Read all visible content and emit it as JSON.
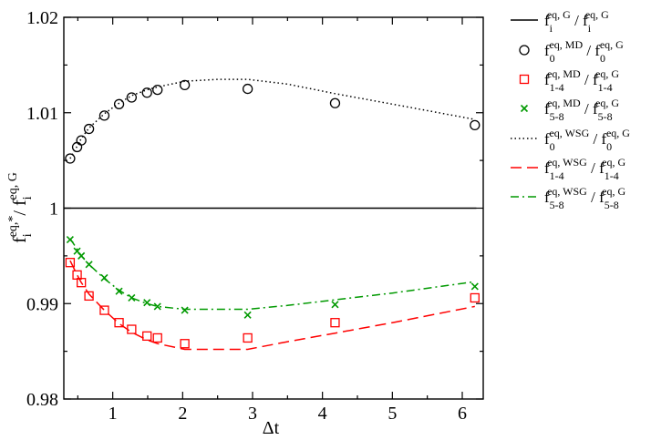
{
  "chart_data": {
    "type": "scatter",
    "xlabel": "Δt",
    "ylabel_main": "f",
    "ylabel_sub": "i",
    "ylabel_sup": "eq,*",
    "ylabel_div": "/ f",
    "ylabel_sub2": "i",
    "ylabel_sup2": "eq, G",
    "xlim": [
      0.3,
      6.3
    ],
    "ylim": [
      0.98,
      1.02
    ],
    "x_ticks": [
      1,
      2,
      3,
      4,
      5,
      6
    ],
    "x_tick_labels": [
      "1",
      "2",
      "3",
      "4",
      "5",
      "6"
    ],
    "y_ticks": [
      0.98,
      0.99,
      1.0,
      1.01,
      1.02
    ],
    "y_tick_labels": [
      "0.98",
      "0.99",
      "1",
      "1.01",
      "1.02"
    ],
    "grid": false,
    "legend_position": "outside-right",
    "colors": {
      "black": "#000000",
      "red": "#ff0000",
      "green": "#009900"
    },
    "legend": [
      {
        "style": "solid-line",
        "color": "#000000",
        "num": "f",
        "num_sub": "i",
        "num_sup": "eq, G",
        "den": "/ f",
        "den_sub": "i",
        "den_sup": "eq, G"
      },
      {
        "style": "circle",
        "color": "#000000",
        "num": "f",
        "num_sub": "0",
        "num_sup": "eq, MD",
        "den": "/ f",
        "den_sub": "0",
        "den_sup": "eq, G"
      },
      {
        "style": "square",
        "color": "#ff0000",
        "num": "f",
        "num_sub": "1-4",
        "num_sup": "eq, MD",
        "den": "/ f",
        "den_sub": "1-4",
        "den_sup": "eq, G"
      },
      {
        "style": "cross",
        "color": "#009900",
        "num": "f",
        "num_sub": "5-8",
        "num_sup": "eq, MD",
        "den": "/ f",
        "den_sub": "5-8",
        "den_sup": "eq, G"
      },
      {
        "style": "dotted-line",
        "color": "#000000",
        "num": "f",
        "num_sub": "0",
        "num_sup": "eq, WSG",
        "den": "/ f",
        "den_sub": "0",
        "den_sup": "eq, G"
      },
      {
        "style": "dashed-line",
        "color": "#ff0000",
        "num": "f",
        "num_sub": "1-4",
        "num_sup": "eq, WSG",
        "den": "/ f",
        "den_sub": "1-4",
        "den_sup": "eq, G"
      },
      {
        "style": "dashdot-line",
        "color": "#009900",
        "num": "f",
        "num_sub": "5-8",
        "num_sup": "eq, WSG",
        "den": "/ f",
        "den_sub": "5-8",
        "den_sup": "eq, G"
      }
    ],
    "series": [
      {
        "kind": "line",
        "style": "solid",
        "color": "#000000",
        "x": [
          0.3,
          6.2
        ],
        "y": [
          1.0,
          1.0
        ]
      },
      {
        "kind": "markers",
        "marker": "circle",
        "color": "#000000",
        "x": [
          0.39,
          0.49,
          0.55,
          0.66,
          0.88,
          1.09,
          1.27,
          1.49,
          1.64,
          2.03,
          2.93,
          4.18,
          6.18
        ],
        "y": [
          1.0052,
          1.0064,
          1.0071,
          1.0083,
          1.0097,
          1.0109,
          1.0116,
          1.0121,
          1.0124,
          1.0129,
          1.0125,
          1.011,
          1.0087
        ]
      },
      {
        "kind": "markers",
        "marker": "square",
        "color": "#ff0000",
        "x": [
          0.39,
          0.49,
          0.55,
          0.66,
          0.88,
          1.09,
          1.27,
          1.49,
          1.64,
          2.03,
          2.93,
          4.18,
          6.18
        ],
        "y": [
          0.9943,
          0.993,
          0.9922,
          0.9908,
          0.9893,
          0.988,
          0.9873,
          0.9866,
          0.9864,
          0.9858,
          0.9864,
          0.988,
          0.9906
        ]
      },
      {
        "kind": "markers",
        "marker": "cross",
        "color": "#009900",
        "x": [
          0.39,
          0.49,
          0.55,
          0.66,
          0.88,
          1.09,
          1.27,
          1.49,
          1.64,
          2.03,
          2.93,
          4.18,
          6.18
        ],
        "y": [
          0.9967,
          0.9955,
          0.995,
          0.9941,
          0.9927,
          0.9913,
          0.9906,
          0.9901,
          0.9897,
          0.9893,
          0.9888,
          0.9899,
          0.9918
        ]
      },
      {
        "kind": "line",
        "style": "dotted",
        "color": "#000000",
        "x": [
          0.39,
          0.49,
          0.55,
          0.66,
          0.88,
          1.09,
          1.27,
          1.49,
          1.64,
          2.03,
          2.5,
          2.93,
          3.5,
          4.18,
          5.0,
          6.18
        ],
        "y": [
          1.0052,
          1.0065,
          1.0073,
          1.0084,
          1.0099,
          1.011,
          1.0118,
          1.0124,
          1.0127,
          1.0133,
          1.0135,
          1.0135,
          1.013,
          1.012,
          1.0109,
          1.0093
        ]
      },
      {
        "kind": "line",
        "style": "dashed",
        "color": "#ff0000",
        "x": [
          0.39,
          0.49,
          0.55,
          0.66,
          0.88,
          1.09,
          1.27,
          1.49,
          1.64,
          2.03,
          2.5,
          2.93,
          3.5,
          4.18,
          5.0,
          6.18
        ],
        "y": [
          0.9945,
          0.993,
          0.9922,
          0.991,
          0.9893,
          0.9879,
          0.987,
          0.9862,
          0.9858,
          0.9852,
          0.9852,
          0.9852,
          0.986,
          0.9869,
          0.988,
          0.9897
        ]
      },
      {
        "kind": "line",
        "style": "dashdot",
        "color": "#009900",
        "x": [
          0.39,
          0.49,
          0.55,
          0.66,
          0.88,
          1.09,
          1.27,
          1.49,
          1.64,
          2.03,
          2.5,
          2.93,
          3.5,
          4.18,
          5.0,
          6.18
        ],
        "y": [
          0.9968,
          0.9957,
          0.995,
          0.9941,
          0.9926,
          0.9914,
          0.9906,
          0.99,
          0.9897,
          0.9894,
          0.9894,
          0.9894,
          0.9898,
          0.9904,
          0.9911,
          0.9923
        ]
      }
    ]
  }
}
